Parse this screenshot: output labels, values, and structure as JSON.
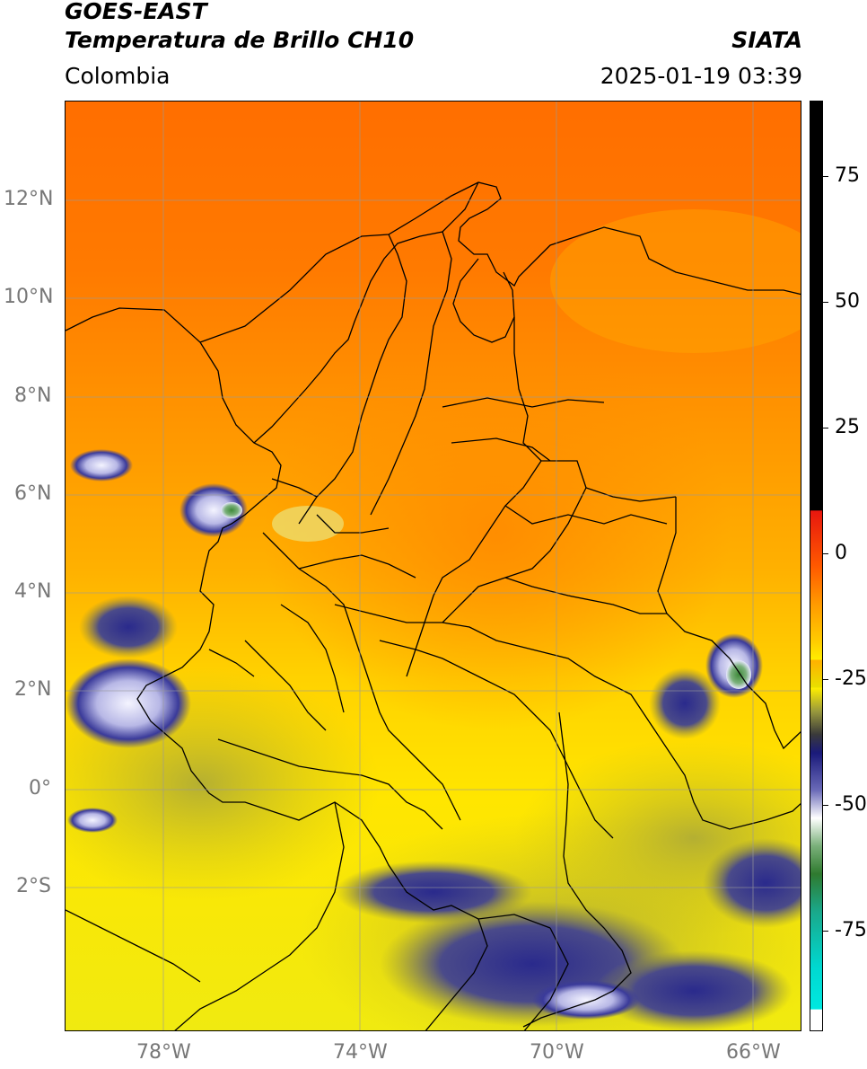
{
  "header": {
    "satellite": "GOES-EAST",
    "product": "Temperatura de Brillo CH10",
    "region": "Colombia",
    "agency": "SIATA",
    "datetime": "2025-01-19 03:39"
  },
  "map": {
    "lon_labels": [
      "78°W",
      "74°W",
      "70°W",
      "66°W"
    ],
    "lat_labels": [
      "12°N",
      "10°N",
      "8°N",
      "6°N",
      "4°N",
      "2°N",
      "0°",
      "2°S"
    ],
    "lon_range": [
      -80,
      -65
    ],
    "lat_range": [
      -5.2,
      14
    ],
    "colors": {
      "warm_orange": "#ff7a00",
      "mid_orange": "#ff9a00",
      "amber": "#ffc200",
      "yellow": "#ffee00",
      "olive": "#c8c01e",
      "navy": "#2a2a8c",
      "white_cloud": "#eeeeff",
      "green_core": "#3f8a3a",
      "border_line": "#000000",
      "grid_line": "#9a9a9a"
    }
  },
  "colorbar": {
    "labels": [
      "75",
      "50",
      "25",
      "0",
      "-25",
      "-50",
      "-75"
    ],
    "values": [
      75,
      50,
      25,
      0,
      -25,
      -50,
      -75
    ],
    "range": [
      -95,
      90
    ],
    "colors": {
      "black": "#000000",
      "red": "#e8170e",
      "orange": "#ff8a00",
      "yellow": "#ffee00",
      "olive": "#9a9a3c",
      "navy": "#1a1a7a",
      "white": "#ffffff",
      "green": "#2f7a2f",
      "teal": "#00d8d0"
    }
  }
}
